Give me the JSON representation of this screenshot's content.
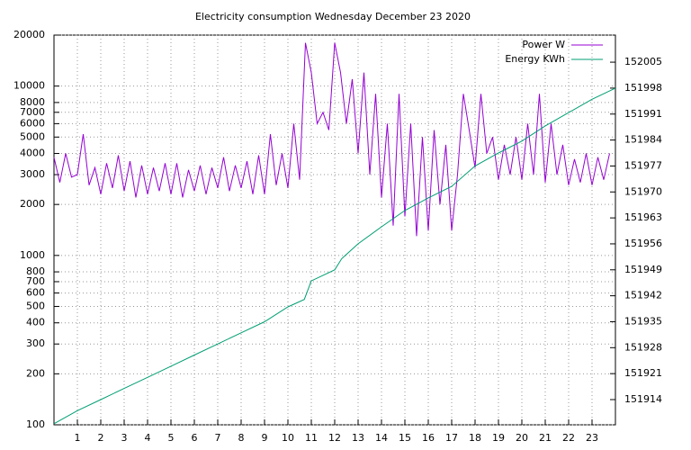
{
  "chart_data": {
    "type": "line",
    "title": "Electricity consumption Wednesday December 23 2020",
    "xlim": [
      0,
      24
    ],
    "xticks": [
      1,
      2,
      3,
      4,
      5,
      6,
      7,
      8,
      9,
      10,
      11,
      12,
      13,
      14,
      15,
      16,
      17,
      18,
      19,
      20,
      21,
      22,
      23
    ],
    "ylim": [
      100,
      20000
    ],
    "log_y": true,
    "yticks": [
      100,
      200,
      300,
      400,
      500,
      600,
      700,
      800,
      1000,
      2000,
      3000,
      4000,
      5000,
      6000,
      7000,
      8000,
      10000,
      20000
    ],
    "y2lim": [
      151907.2,
      152012.3
    ],
    "y2ticks": [
      151914,
      151921,
      151928,
      151935,
      151942,
      151949,
      151956,
      151963,
      151970,
      151977,
      151984,
      151991,
      151998,
      152005
    ],
    "grid": true,
    "legend": "top-right",
    "series": [
      {
        "name": "Power W",
        "color": "#9400d3",
        "x": [
          0,
          0.25,
          0.5,
          0.75,
          1,
          1.25,
          1.5,
          1.75,
          2,
          2.25,
          2.5,
          2.75,
          3,
          3.25,
          3.5,
          3.75,
          4,
          4.25,
          4.5,
          4.75,
          5,
          5.25,
          5.5,
          5.75,
          6,
          6.25,
          6.5,
          6.75,
          7,
          7.25,
          7.5,
          7.75,
          8,
          8.25,
          8.5,
          8.75,
          9,
          9.25,
          9.5,
          9.75,
          10,
          10.25,
          10.5,
          10.75,
          11,
          11.25,
          11.5,
          11.75,
          12,
          12.25,
          12.5,
          12.75,
          13,
          13.25,
          13.5,
          13.75,
          14,
          14.25,
          14.5,
          14.75,
          15,
          15.25,
          15.5,
          15.75,
          16,
          16.25,
          16.5,
          16.75,
          17,
          17.25,
          17.5,
          17.75,
          18,
          18.25,
          18.5,
          18.75,
          19,
          19.25,
          19.5,
          19.75,
          20,
          20.25,
          20.5,
          20.75,
          21,
          21.25,
          21.5,
          21.75,
          22,
          22.25,
          22.5,
          22.75,
          23,
          23.25,
          23.5,
          23.75
        ],
        "values": [
          3800,
          2700,
          4000,
          2900,
          3000,
          5200,
          2600,
          3300,
          2300,
          3500,
          2500,
          3900,
          2400,
          3600,
          2200,
          3400,
          2300,
          3300,
          2400,
          3500,
          2300,
          3500,
          2200,
          3200,
          2400,
          3400,
          2300,
          3300,
          2500,
          3800,
          2400,
          3400,
          2500,
          3600,
          2300,
          3900,
          2300,
          5200,
          2600,
          4000,
          2500,
          6000,
          2800,
          18000,
          12000,
          6000,
          7000,
          5500,
          18000,
          12000,
          6000,
          11000,
          4000,
          12000,
          3000,
          9000,
          2200,
          6000,
          1500,
          9000,
          1700,
          6000,
          1300,
          5000,
          1400,
          5500,
          2000,
          4500,
          1400,
          3000,
          9000,
          5500,
          3300,
          9000,
          4000,
          5000,
          2800,
          4500,
          3000,
          5000,
          2800,
          6000,
          3000,
          9000,
          2700,
          6000,
          3000,
          4500,
          2600,
          3700,
          2700,
          4000,
          2600,
          3800,
          2800,
          4000
        ]
      },
      {
        "name": "Energy KWh",
        "color": "#009e73",
        "axis": "y2",
        "x": [
          0,
          1,
          2,
          3,
          4,
          5,
          6,
          7,
          8,
          9,
          10,
          10.7,
          11,
          12,
          12.3,
          13,
          14,
          15,
          16,
          17,
          18,
          19,
          20,
          21,
          22,
          23,
          24
        ],
        "values": [
          151907.5,
          151911,
          151914,
          151917,
          151920,
          151923,
          151926,
          151929,
          151932,
          151935,
          151939,
          151941,
          151946,
          151949,
          151952,
          151956,
          151960.6,
          151965,
          151968.4,
          151971.5,
          151977,
          151980.5,
          151983.7,
          151987.8,
          151991.4,
          151995,
          151998
        ]
      }
    ]
  }
}
